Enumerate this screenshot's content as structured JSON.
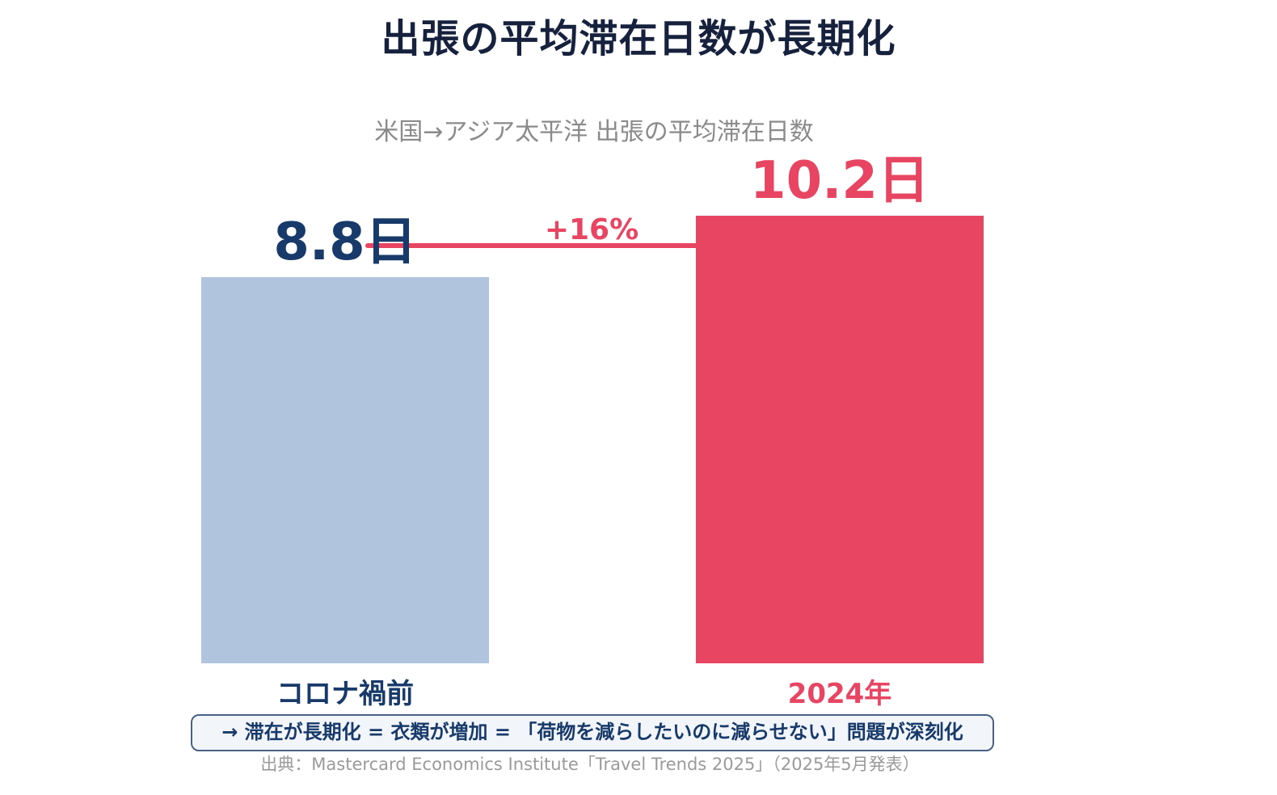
{
  "title": "出張の平均滞在日数が長期化",
  "note": "→ 滞在が長期化 = 衣類が増加 = 「荷物を減らしたいのに減らせない」問題が深刻化",
  "source": "出典：Mastercard Economics Institute「Travel Trends 2025」（2025年5月発表）",
  "colors": {
    "pre_covid": "#b0c4de",
    "year_2024": "#e84563",
    "pre_covid_text": "#173a6b",
    "accent": "#e84563"
  },
  "chart_data": {
    "type": "bar",
    "title": "米国→アジア太平洋 出張の平均滞在日数",
    "categories": [
      "コロナ禍前",
      "2024年"
    ],
    "values": [
      8.8,
      10.2
    ],
    "value_labels": [
      "8.8日",
      "10.2日"
    ],
    "unit": "日",
    "ylim": [
      0,
      10.2
    ],
    "grid": false,
    "annotations": [
      {
        "text": "+16%",
        "from": "コロナ禍前",
        "to": "2024年"
      }
    ]
  }
}
